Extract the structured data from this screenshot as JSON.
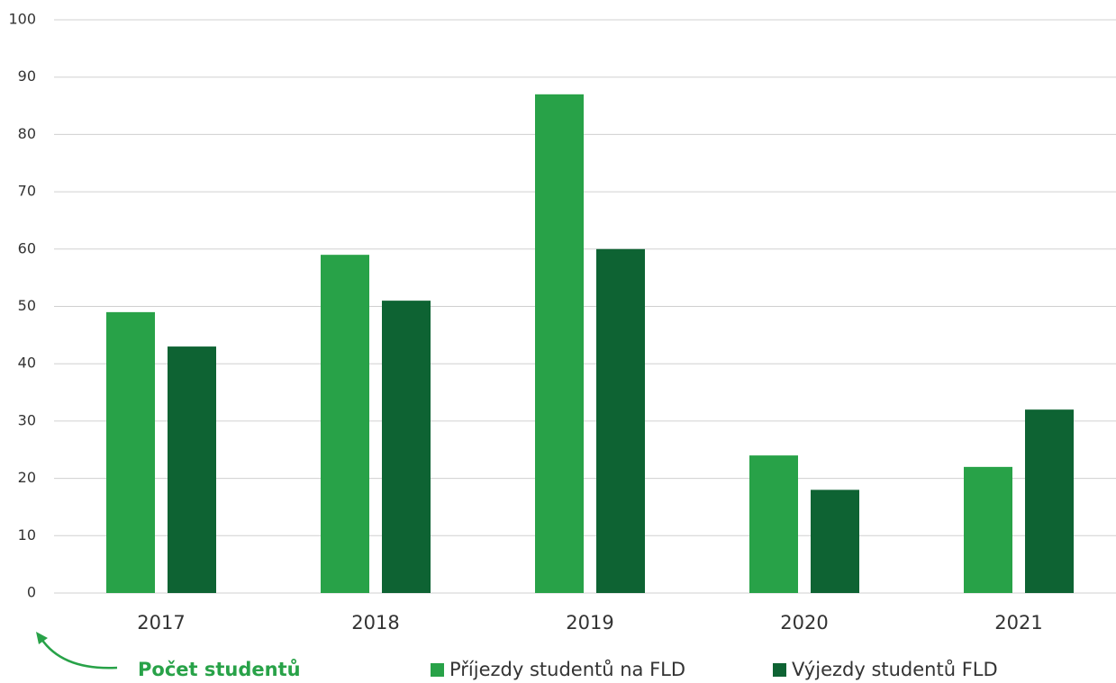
{
  "chart_data": {
    "type": "bar",
    "y_label": "Počet studentů",
    "categories": [
      "2017",
      "2018",
      "2019",
      "2020",
      "2021"
    ],
    "series": [
      {
        "name": "Příjezdy studentů na FLD",
        "color": "#28a248",
        "values": [
          49,
          59,
          87,
          24,
          22
        ]
      },
      {
        "name": "Výjezdy studentů FLD",
        "color": "#0e6333",
        "values": [
          43,
          51,
          60,
          18,
          32
        ]
      }
    ],
    "ylim": [
      0,
      100
    ],
    "yticks": [
      0,
      10,
      20,
      30,
      40,
      50,
      60,
      70,
      80,
      90,
      100
    ],
    "grid": true,
    "legend": "bottom"
  }
}
